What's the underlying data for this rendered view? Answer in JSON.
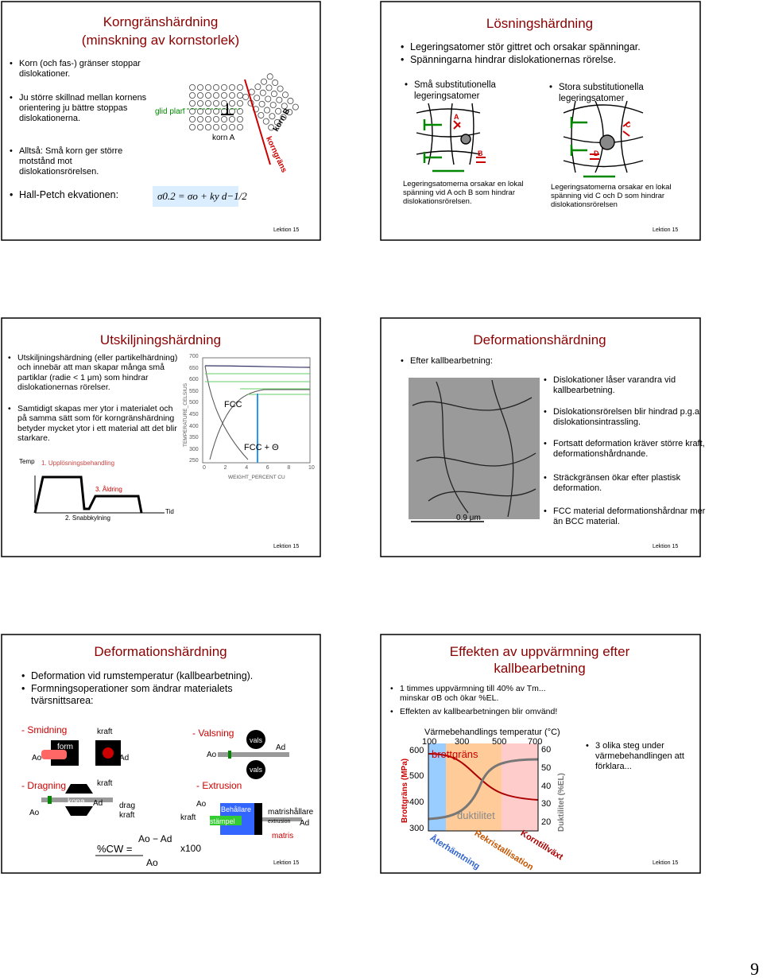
{
  "page_number": "9",
  "slides": [
    {
      "title": [
        "Korngränshärdning",
        "(minskning av kornstorlek)"
      ],
      "bullets": [
        "Korn (och fas-) gränser stoppar dislokationer.",
        "Ju större skillnad mellan kornens orientering ju bättre stoppas dislokationerna.",
        "Alltså: Små korn ger större motstånd mot dislokationsrörelsen.",
        "Hall-Petch ekvationen:"
      ],
      "labels": [
        "glid plan",
        "korn A",
        "korn B",
        "korngräns"
      ],
      "equation": "σ0.2 = σo + ky d−1/2",
      "footer": "Lektion 15"
    },
    {
      "title": [
        "Lösningshärdning"
      ],
      "bullets": [
        "Legeringsatomer stör gittret och orsakar spänningar.",
        "Spänningarna hindrar dislokationernas rörelse."
      ],
      "headings": [
        "Små substitutionella legeringsatomer",
        "Stora substitutionella legeringsatomer"
      ],
      "captions": [
        "Legeringsatomerna orsakar en lokal spänning vid A och B som hindrar dislokationsrörelsen.",
        "Legeringsatomerna orsakar en lokal spänning vid C och D som hindrar dislokationsrörelsen"
      ],
      "labels": [
        "A",
        "B",
        "C",
        "D"
      ],
      "footer": "Lektion 15"
    },
    {
      "title": [
        "Utskiljningshärdning"
      ],
      "bullets": [
        "Utskiljningshärdning (eller partikelhärdning) och innebär att man skapar många små partiklar (radie < 1 μm) som hindrar dislokationernas rörelser.",
        "Samtidigt skapas mer ytor i materialet och på samma sätt som för korngränshärdning betyder mycket ytor i ett material att det blir starkare."
      ],
      "yticks": [
        "700",
        "650",
        "600",
        "550",
        "500",
        "450",
        "400",
        "350",
        "300",
        "250"
      ],
      "xticks": [
        "0",
        "2",
        "4",
        "6",
        "8",
        "10"
      ],
      "labels": [
        "TEMPERATURE_CELSIUS",
        "WEIGHT_PERCENT CU",
        "FCC",
        "FCC + Θ",
        "Temp",
        "1. Upplösningsbehandling",
        "3. Åldring",
        "2. Snabbkylning",
        "Tid"
      ],
      "footer": "Lektion 15"
    },
    {
      "title": [
        "Deformationshärdning"
      ],
      "intro": "Efter kallbearbetning:",
      "bullets": [
        "Dislokationer låser varandra vid kallbearbetning.",
        "Dislokationsrörelsen blir hindrad p.g.a dislokationsintrassling.",
        "Fortsatt deformation kräver större kraft, deformationshårdnande.",
        "Sträckgränsen ökar efter plastisk deformation.",
        "FCC material deformationshårdnar mer än BCC material."
      ],
      "labels": [
        "0.9 μm"
      ],
      "footer": "Lektion 15"
    },
    {
      "title": [
        "Deformationshärdning"
      ],
      "bullets": [
        "Deformation vid rumstemperatur (kallbearbetning).",
        "Formningsoperationer som ändrar materialets tvärsnittsarea:"
      ],
      "labels": [
        "- Smidning",
        "form",
        "kraft",
        "Ao",
        "Ad",
        "kraft",
        "- Dragning",
        "kona",
        "Ad",
        "drag kraft",
        "Ao",
        "- Valsning",
        "vals",
        "vals",
        "Ao",
        "Ad",
        "- Extrusion",
        "Ao",
        "kraft",
        "Behållare",
        "stämpel",
        "matrishållare",
        "extrusion",
        "Ad",
        "matris"
      ],
      "formula": [
        "%CW =",
        "Ao − Ad",
        "Ao",
        "x100"
      ],
      "footer": "Lektion 15"
    },
    {
      "title": [
        "Effekten av uppvärmning efter",
        "kallbearbetning"
      ],
      "bullets": [
        "1 timmes uppvärmning till 40% av Tm... minskar σB och ökar %EL.",
        "Effekten av kallbearbetningen blir omvänd!"
      ],
      "chart_title": "Värmebehandlings temperatur (°C)",
      "top_ticks": [
        "100",
        "300",
        "500",
        "700"
      ],
      "left_ticks": [
        "600",
        "500",
        "400",
        "300"
      ],
      "right_ticks": [
        "60",
        "50",
        "40",
        "30",
        "20"
      ],
      "labels": [
        "Brottgräns (MPa)",
        "Duktilitet (%EL)",
        "brottgräns",
        "duktilitet",
        "Återhämtning",
        "Rekristallisation",
        "Korntillväxt"
      ],
      "side_note": "3 olika steg under värmebehandlingen att förklara...",
      "footer": "Lektion 15"
    }
  ]
}
